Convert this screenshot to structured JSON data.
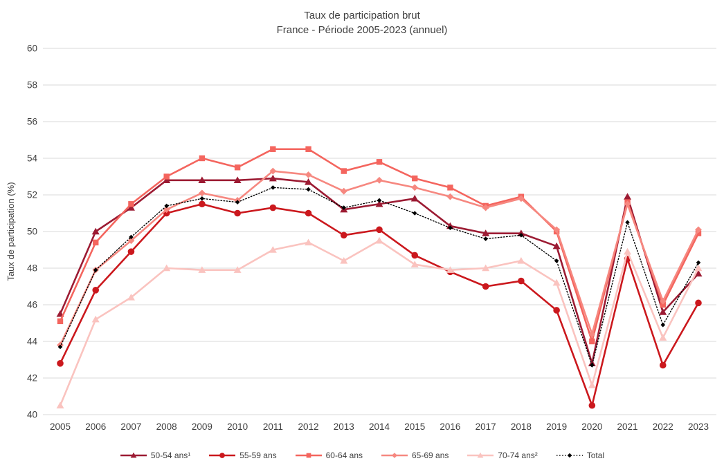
{
  "title": {
    "line1": "Taux de participation brut",
    "line2": "France - Période 2005-2023 (annuel)"
  },
  "y_axis_label": "Taux de participation (%)",
  "chart_data": {
    "type": "line",
    "x": [
      "2005",
      "2006",
      "2007",
      "2008",
      "2009",
      "2010",
      "2011",
      "2012",
      "2013",
      "2014",
      "2015",
      "2016",
      "2017",
      "2018",
      "2019",
      "2020",
      "2021",
      "2022",
      "2023"
    ],
    "ylim": [
      40,
      60
    ],
    "y_ticks": [
      40,
      42,
      44,
      46,
      48,
      50,
      52,
      54,
      56,
      58,
      60
    ],
    "grid": true,
    "legend_position": "bottom",
    "gridline_color": "#d9d9d9",
    "text_color": "#404040",
    "series": [
      {
        "name": "50-54 ans¹",
        "marker": "triangle",
        "dashed": false,
        "color": "#9c1b33",
        "values": [
          45.5,
          50.0,
          51.3,
          52.8,
          52.8,
          52.8,
          52.9,
          52.7,
          51.2,
          51.5,
          51.8,
          50.3,
          49.9,
          49.9,
          49.2,
          42.8,
          51.9,
          45.6,
          47.7
        ]
      },
      {
        "name": "55-59 ans",
        "marker": "circle",
        "dashed": false,
        "color": "#cb181d",
        "values": [
          42.8,
          46.8,
          48.9,
          51.0,
          51.5,
          51.0,
          51.3,
          51.0,
          49.8,
          50.1,
          48.7,
          47.8,
          47.0,
          47.3,
          45.7,
          40.5,
          48.5,
          42.7,
          46.1
        ]
      },
      {
        "name": "60-64 ans",
        "marker": "square",
        "dashed": false,
        "color": "#f4655e",
        "values": [
          45.1,
          49.4,
          51.5,
          53.0,
          54.0,
          53.5,
          54.5,
          54.5,
          53.3,
          53.8,
          52.9,
          52.4,
          51.4,
          51.9,
          50.0,
          44.0,
          51.6,
          46.0,
          49.9
        ]
      },
      {
        "name": "65-69 ans",
        "marker": "diamond",
        "dashed": false,
        "color": "#f68880",
        "values": [
          43.8,
          47.9,
          49.5,
          51.2,
          52.1,
          51.7,
          53.3,
          53.1,
          52.2,
          52.8,
          52.4,
          51.9,
          51.3,
          51.8,
          50.1,
          44.4,
          51.5,
          46.2,
          50.1
        ]
      },
      {
        "name": "70-74 ans²",
        "marker": "triangle",
        "dashed": false,
        "color": "#fac3bf",
        "values": [
          40.5,
          45.2,
          46.4,
          48.0,
          47.9,
          47.9,
          49.0,
          49.4,
          48.4,
          49.5,
          48.2,
          47.9,
          48.0,
          48.4,
          47.2,
          41.6,
          48.9,
          44.2,
          48.0
        ]
      },
      {
        "name": "Total",
        "marker": "diamond-small",
        "dashed": true,
        "color": "#000000",
        "values": [
          43.7,
          47.9,
          49.7,
          51.4,
          51.8,
          51.6,
          52.4,
          52.3,
          51.3,
          51.7,
          51.0,
          50.2,
          49.6,
          49.8,
          48.4,
          42.7,
          50.5,
          44.9,
          48.3
        ]
      }
    ]
  }
}
